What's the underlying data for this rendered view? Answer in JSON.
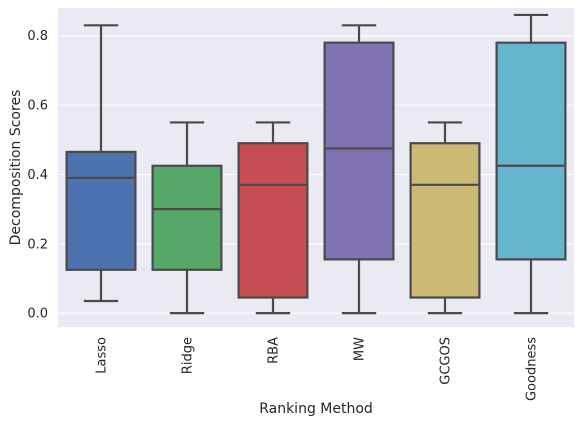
{
  "chart_data": {
    "type": "box",
    "xlabel": "Ranking Method",
    "ylabel": "Decomposition Scores",
    "ylim": [
      -0.04,
      0.88
    ],
    "yticks": [
      0.0,
      0.2,
      0.4,
      0.6,
      0.8
    ],
    "ytick_labels": [
      "0.0",
      "0.2",
      "0.4",
      "0.6",
      "0.8"
    ],
    "grid": true,
    "categories": [
      "Lasso",
      "Ridge",
      "RBA",
      "MW",
      "GCGOS",
      "Goodness"
    ],
    "boxes": [
      {
        "category": "Lasso",
        "whisker_low": 0.035,
        "q1": 0.125,
        "median": 0.39,
        "q3": 0.465,
        "whisker_high": 0.83,
        "color": "#4c72b0"
      },
      {
        "category": "Ridge",
        "whisker_low": 0.0,
        "q1": 0.125,
        "median": 0.3,
        "q3": 0.425,
        "whisker_high": 0.55,
        "color": "#55a868"
      },
      {
        "category": "RBA",
        "whisker_low": 0.0,
        "q1": 0.045,
        "median": 0.37,
        "q3": 0.49,
        "whisker_high": 0.55,
        "color": "#c44e52"
      },
      {
        "category": "MW",
        "whisker_low": 0.0,
        "q1": 0.155,
        "median": 0.475,
        "q3": 0.78,
        "whisker_high": 0.83,
        "color": "#8172b2"
      },
      {
        "category": "GCGOS",
        "whisker_low": 0.0,
        "q1": 0.045,
        "median": 0.37,
        "q3": 0.49,
        "whisker_high": 0.55,
        "color": "#ccb974"
      },
      {
        "category": "Goodness",
        "whisker_low": 0.0,
        "q1": 0.155,
        "median": 0.425,
        "q3": 0.78,
        "whisker_high": 0.86,
        "color": "#64b5cd"
      }
    ],
    "colors": {
      "plot_background": "#eaeaf2",
      "gridline": "#ffffff",
      "box_edge": "#4a4a4a"
    }
  }
}
